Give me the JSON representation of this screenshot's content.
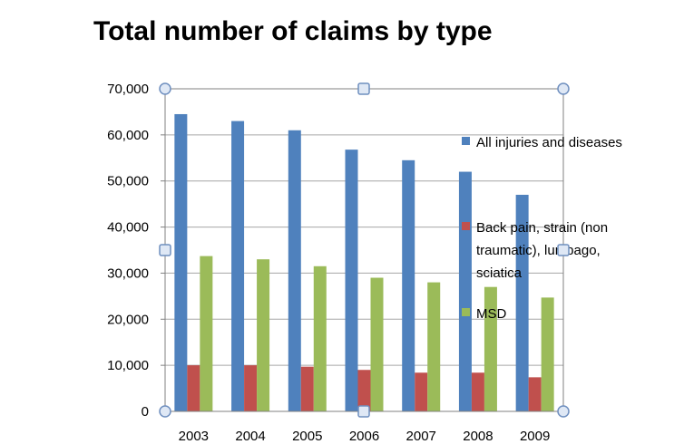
{
  "chart_data": {
    "type": "bar",
    "title": "Total number of claims by type",
    "categories": [
      "2003",
      "2004",
      "2005",
      "2006",
      "2007",
      "2008",
      "2009"
    ],
    "series": [
      {
        "name": "All injuries and diseases",
        "legend_lines": [
          "All injuries and diseases"
        ],
        "color": "#4f81bd",
        "values": [
          64500,
          63000,
          61000,
          56800,
          54500,
          52000,
          47000
        ]
      },
      {
        "name": "Back pain, strain (non traumatic), lumbago, sciatica",
        "legend_lines": [
          "Back pain, strain (non",
          "traumatic), lumbago,",
          "sciatica"
        ],
        "color": "#c0504d",
        "values": [
          10000,
          10000,
          9700,
          9000,
          8400,
          8400,
          7400
        ]
      },
      {
        "name": "MSD",
        "legend_lines": [
          "MSD"
        ],
        "color": "#9bbb59",
        "values": [
          33700,
          33000,
          31500,
          29000,
          28000,
          27000,
          24700
        ]
      }
    ],
    "yticks": [
      "0",
      "10,000",
      "20,000",
      "30,000",
      "40,000",
      "50,000",
      "60,000",
      "70,000"
    ],
    "ylim": [
      0,
      70000
    ],
    "grid": true,
    "legend_position": "right"
  }
}
